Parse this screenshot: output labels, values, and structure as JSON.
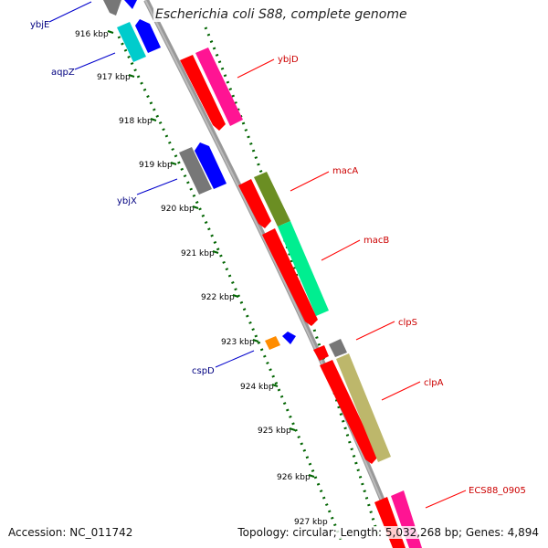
{
  "title": "Escherichia coli S88, complete genome",
  "footer": {
    "accession": "Accession: NC_011742",
    "summary": "Topology: circular; Length: 5,032,268 bp; Genes: 4,894"
  },
  "ticks": [
    "916 kbp",
    "917 kbp",
    "918 kbp",
    "919 kbp",
    "920 kbp",
    "921 kbp",
    "922 kbp",
    "923 kbp",
    "924 kbp",
    "925 kbp",
    "926 kbp",
    "927 kbp"
  ],
  "genes_reverse": [
    {
      "name": "ybjE",
      "color": "#777777"
    },
    {
      "name": "aqpZ",
      "color": "#00cccc"
    },
    {
      "name": "ybjX",
      "color": "#777777"
    },
    {
      "name": "cspD",
      "color": "#ff8c00"
    }
  ],
  "genes_forward": [
    {
      "name": "ybjD",
      "color": "#ff1493"
    },
    {
      "name": "macA",
      "color": "#6b8e23"
    },
    {
      "name": "macB",
      "color": "#00ee90"
    },
    {
      "name": "clpS",
      "color": "#777777"
    },
    {
      "name": "clpA",
      "color": "#bdb76b"
    },
    {
      "name": "ECS88_0905",
      "color": "#ff1493"
    }
  ],
  "colors": {
    "cds": "#ff0000",
    "reverse_label": "#000080",
    "forward_label": "#cc0000",
    "tick": "#006400",
    "backbone": "#888888"
  }
}
